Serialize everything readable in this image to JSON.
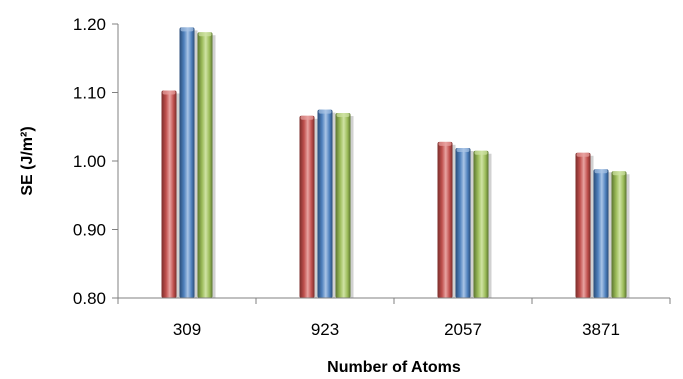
{
  "chart_data": {
    "type": "bar",
    "title": "",
    "xlabel": "Number of Atoms",
    "ylabel": "SE (J/m²)",
    "categories": [
      "309",
      "923",
      "2057",
      "3871"
    ],
    "ylim": [
      0.8,
      1.2
    ],
    "yticks": [
      0.8,
      0.9,
      1.0,
      1.1,
      1.2
    ],
    "ytick_labels": [
      "0.80",
      "0.90",
      "1.00",
      "1.10",
      "1.20"
    ],
    "grid": false,
    "legend": "none",
    "series": [
      {
        "values": [
          1.103,
          1.066,
          1.028,
          1.012
        ],
        "color": "#c0504d",
        "light": "#e8a3a1",
        "dark": "#7a2d2b"
      },
      {
        "values": [
          1.195,
          1.075,
          1.019,
          0.988
        ],
        "color": "#4f81bd",
        "light": "#a9c4e6",
        "dark": "#2a4c78"
      },
      {
        "values": [
          1.188,
          1.07,
          1.015,
          0.985
        ],
        "color": "#9bbb59",
        "light": "#cfe3a4",
        "dark": "#5b7530"
      }
    ]
  }
}
